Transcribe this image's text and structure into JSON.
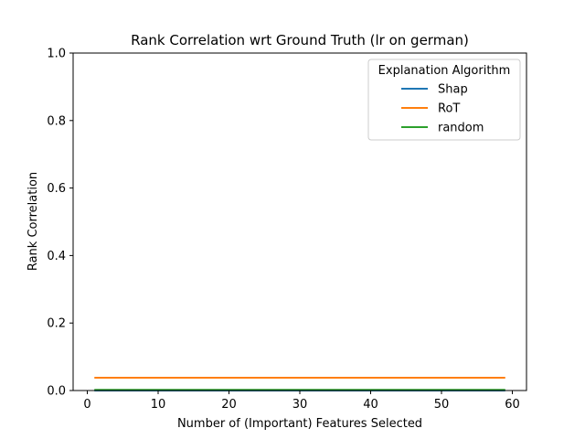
{
  "chart_data": {
    "type": "line",
    "title": "Rank Correlation wrt Ground Truth (lr on german)",
    "xlabel": "Number of (Important) Features Selected",
    "ylabel": "Rank Correlation",
    "xlim": [
      -2,
      62
    ],
    "ylim": [
      0,
      1
    ],
    "xticks": [
      0,
      10,
      20,
      30,
      40,
      50,
      60
    ],
    "yticks": [
      0.0,
      0.2,
      0.4,
      0.6,
      0.8,
      1.0
    ],
    "grid": false,
    "legend": {
      "title": "Explanation Algorithm",
      "placement": "top-right"
    },
    "series": [
      {
        "name": "Shap",
        "color": "#1f77b4",
        "x": [
          1,
          59
        ],
        "values": [
          0.0,
          0.0
        ]
      },
      {
        "name": "RoT",
        "color": "#ff7f0e",
        "x": [
          1,
          59
        ],
        "values": [
          0.038,
          0.038
        ]
      },
      {
        "name": "random",
        "color": "#2ca02c",
        "x": [
          1,
          59
        ],
        "values": [
          0.002,
          0.002
        ]
      }
    ]
  }
}
